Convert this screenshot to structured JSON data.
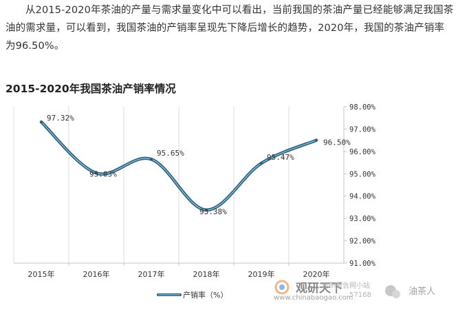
{
  "intro_text": "从2015-2020年茶油的产量与需求量变化中可以看出，当前我国的茶油产量已经能够满足我国茶油的需求量，可以看到，我国茶油的产销率呈现先下降后增长的趋势，2020年，我国的茶油产销率为96.50%。",
  "chart_title": "2015-2020年我国茶油产销率情况",
  "chart_data": {
    "type": "line",
    "categories": [
      "2015年",
      "2016年",
      "2017年",
      "2018年",
      "2019年",
      "2020年"
    ],
    "series": [
      {
        "name": "产销率（%）",
        "values": [
          97.32,
          95.03,
          95.65,
          93.38,
          95.47,
          96.5
        ]
      }
    ],
    "data_labels": [
      "97.32%",
      "95.03%",
      "95.65%",
      "93.38%",
      "95.47%",
      "96.50%"
    ],
    "y_ticks": [
      "91.00%",
      "92.00%",
      "93.00%",
      "94.00%",
      "95.00%",
      "96.00%",
      "97.00%",
      "98.00%"
    ],
    "ylim": [
      91,
      98
    ],
    "y_axis_side": "right",
    "smooth": true,
    "grid": "vertical",
    "legend_position": "bottom-left",
    "line_color": "#2d5f7c",
    "line_highlight": "#8cc3dc"
  },
  "watermark": {
    "brand": "观研天下",
    "url_fragment": "www.chinabaogao.com",
    "site_text": "观研报告网小站",
    "phone_fragment": "57168",
    "account": "油茶人"
  }
}
